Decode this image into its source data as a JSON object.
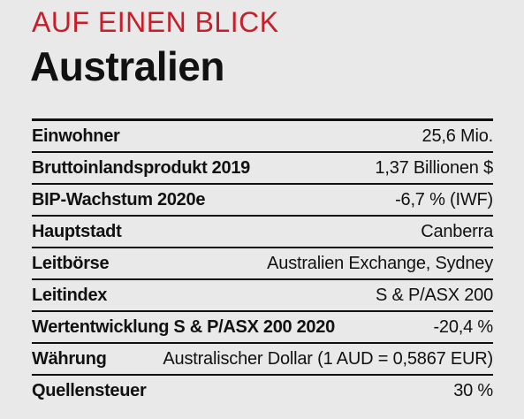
{
  "colors": {
    "background": "#e9e9e9",
    "kicker": "#c81e2a",
    "text": "#111111",
    "rule": "#111111"
  },
  "header": {
    "kicker": "AUF EINEN BLICK",
    "title": "Australien"
  },
  "facts": [
    {
      "label": "Einwohner",
      "value": "25,6 Mio."
    },
    {
      "label": "Bruttoinlandsprodukt 2019",
      "value": "1,37 Billionen $"
    },
    {
      "label": "BIP-Wachstum 2020e",
      "value": "-6,7 % (IWF)"
    },
    {
      "label": "Hauptstadt",
      "value": "Canberra"
    },
    {
      "label": "Leitbörse",
      "value": "Australien Exchange, Sydney"
    },
    {
      "label": "Leitindex",
      "value": "S & P/ASX 200"
    },
    {
      "label": "Wertentwicklung S & P/ASX 200 2020",
      "value": "-20,4 %"
    },
    {
      "label": "Währung",
      "value": "Australischer Dollar (1 AUD = 0,5867 EUR)"
    },
    {
      "label": "Quellensteuer",
      "value": "30 %"
    }
  ]
}
